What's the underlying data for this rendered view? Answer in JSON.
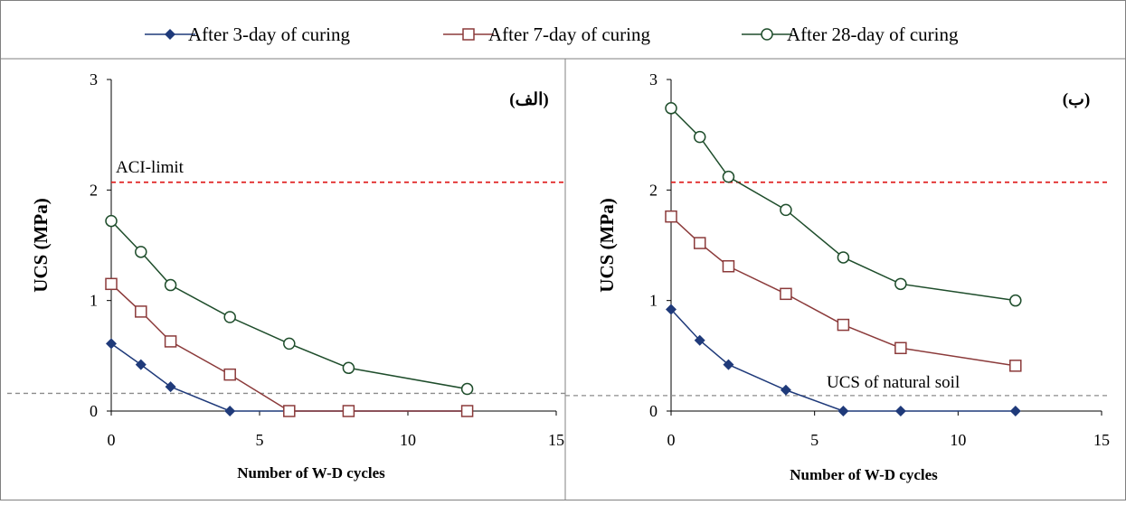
{
  "colors": {
    "series_3day": "#1f3a7a",
    "series_7day": "#8b3a3a",
    "series_28day": "#1e4d2b",
    "aci_line": "#e02020",
    "natural_soil_line": "#8c8c8c",
    "frame": "#808080"
  },
  "legend": [
    {
      "label": "After 3-day of curing",
      "marker": "filled-diamond"
    },
    {
      "label": "After 7-day of curing",
      "marker": "open-square"
    },
    {
      "label": "After 28-day of curing",
      "marker": "open-circle"
    }
  ],
  "chart_data": [
    {
      "type": "line",
      "panel_label": "(الف)",
      "xlabel": "Number of W-D cycles",
      "ylabel": "UCS (MPa)",
      "xlim": [
        0,
        15
      ],
      "ylim": [
        0,
        3
      ],
      "xticks": [
        "0",
        "5",
        "10",
        "15"
      ],
      "yticks": [
        "0",
        "1",
        "2",
        "3"
      ],
      "grid": false,
      "series": [
        {
          "name": "After 3-day of curing",
          "x": [
            0,
            1,
            2,
            4,
            6,
            8,
            12
          ],
          "y": [
            0.61,
            0.42,
            0.22,
            0.0,
            0.0,
            0.0,
            0.0
          ]
        },
        {
          "name": "After 7-day of curing",
          "x": [
            0,
            1,
            2,
            4,
            6,
            8,
            12
          ],
          "y": [
            1.15,
            0.9,
            0.63,
            0.33,
            0.0,
            0.0,
            0.0
          ]
        },
        {
          "name": "After 28-day of curing",
          "x": [
            0,
            1,
            2,
            4,
            6,
            8,
            12
          ],
          "y": [
            1.72,
            1.44,
            1.14,
            0.85,
            0.61,
            0.39,
            0.2
          ]
        }
      ],
      "reference_lines": [
        {
          "label": "ACI-limit",
          "y": 2.07,
          "style": "dashed-red"
        },
        {
          "label": "",
          "y": 0.16,
          "style": "dashed-gray"
        }
      ]
    },
    {
      "type": "line",
      "panel_label": "(ب)",
      "xlabel": "Number of W-D cycles",
      "ylabel": "UCS (MPa)",
      "xlim": [
        0,
        15
      ],
      "ylim": [
        0,
        3
      ],
      "xticks": [
        "0",
        "5",
        "10",
        "15"
      ],
      "yticks": [
        "0",
        "1",
        "2",
        "3"
      ],
      "grid": false,
      "series": [
        {
          "name": "After 3-day of curing",
          "x": [
            0,
            1,
            2,
            4,
            6,
            8,
            12
          ],
          "y": [
            0.92,
            0.64,
            0.42,
            0.19,
            0.0,
            0.0,
            0.0
          ]
        },
        {
          "name": "After 7-day of curing",
          "x": [
            0,
            1,
            2,
            4,
            6,
            8,
            12
          ],
          "y": [
            1.76,
            1.52,
            1.31,
            1.06,
            0.78,
            0.57,
            0.41
          ]
        },
        {
          "name": "After 28-day of curing",
          "x": [
            0,
            1,
            2,
            4,
            6,
            8,
            12
          ],
          "y": [
            2.74,
            2.48,
            2.12,
            1.82,
            1.39,
            1.15,
            1.0
          ]
        }
      ],
      "reference_lines": [
        {
          "label": "",
          "y": 2.07,
          "style": "dashed-red"
        },
        {
          "label": "UCS of natural soil",
          "y": 0.14,
          "style": "dashed-gray"
        }
      ]
    }
  ]
}
